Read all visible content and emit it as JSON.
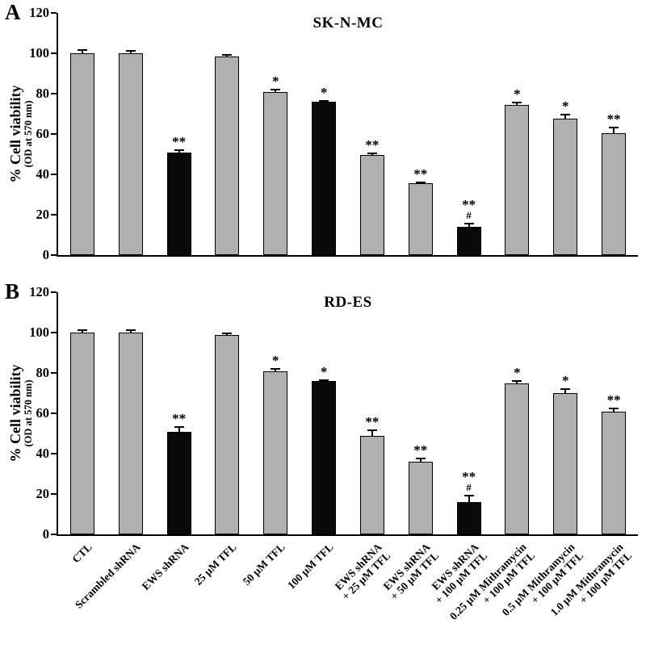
{
  "figure": {
    "panels": [
      {
        "label": "A",
        "title": "SK-N-MC",
        "ylabel": "% Cell viability",
        "ylabel_sub": "(OD at 570 nm)"
      },
      {
        "label": "B",
        "title": "RD-ES",
        "ylabel": "% Cell viability",
        "ylabel_sub": "(OD at 570 nm)"
      }
    ]
  },
  "colors": {
    "bar_gray": "#b0b0b0",
    "bar_black": "#0a0a0a",
    "axis": "#000000"
  },
  "chart_data": [
    {
      "type": "bar",
      "panel": "A",
      "title": "SK-N-MC",
      "ylabel": "% Cell viability (OD at 570 nm)",
      "xlabel": "",
      "ylim": [
        0,
        120
      ],
      "yticks": [
        0,
        20,
        40,
        60,
        80,
        100,
        120
      ],
      "grid": false,
      "legend": false,
      "categories": [
        "CTL",
        "Scrambled shRNA",
        "EWS shRNA",
        "25 µM TFL",
        "50 µM TFL",
        "100 µM TFL",
        "EWS shRNA\n+ 25 µM TFL",
        "EWS shRNA\n+ 50 µM TFL",
        "EWS shRNA\n+ 100 µM TFL",
        "0.25 µM Mithramycin\n+ 100 µM TFL",
        "0.5 µM Mithramycin\n+ 100 µM TFL",
        "1.0 µM Mithramycin\n+ 100 µM TFL"
      ],
      "values": [
        100,
        100,
        51,
        98.5,
        81,
        76,
        49.5,
        35.5,
        14,
        74.5,
        67.5,
        60.5
      ],
      "errors": [
        2,
        1.5,
        1.5,
        1,
        1.5,
        1,
        1.5,
        1,
        2,
        1.5,
        2.5,
        3
      ],
      "significance": [
        [],
        [],
        [
          "**"
        ],
        [],
        [
          "*"
        ],
        [
          "*"
        ],
        [
          "**"
        ],
        [
          "**"
        ],
        [
          "**",
          "#"
        ],
        [
          "*"
        ],
        [
          "*"
        ],
        [
          "**"
        ]
      ],
      "bar_colors": [
        "gray",
        "gray",
        "black",
        "gray",
        "gray",
        "black",
        "gray",
        "gray",
        "black",
        "gray",
        "gray",
        "gray"
      ]
    },
    {
      "type": "bar",
      "panel": "B",
      "title": "RD-ES",
      "ylabel": "% Cell viability (OD at 570 nm)",
      "xlabel": "",
      "ylim": [
        0,
        120
      ],
      "yticks": [
        0,
        20,
        40,
        60,
        80,
        100,
        120
      ],
      "grid": false,
      "legend": false,
      "categories": [
        "CTL",
        "Scrambled shRNA",
        "EWS shRNA",
        "25 µM TFL",
        "50 µM TFL",
        "100 µM TFL",
        "EWS shRNA\n+ 25 µM TFL",
        "EWS shRNA\n+ 50 µM TFL",
        "EWS shRNA\n+ 100 µM TFL",
        "0.25 µM Mithramycin\n+ 100 µM TFL",
        "0.5 µM Mithramycin\n+ 100 µM TFL",
        "1.0 µM Mithramycin\n+ 100 µM TFL"
      ],
      "values": [
        100,
        100,
        51,
        99,
        81,
        76,
        49,
        36,
        16,
        75,
        70,
        61
      ],
      "errors": [
        1.5,
        1.5,
        2.5,
        1,
        1.5,
        1,
        3,
        2,
        3.5,
        1.5,
        2.5,
        2
      ],
      "significance": [
        [],
        [],
        [
          "**"
        ],
        [],
        [
          "*"
        ],
        [
          "*"
        ],
        [
          "**"
        ],
        [
          "**"
        ],
        [
          "**",
          "#"
        ],
        [
          "*"
        ],
        [
          "*"
        ],
        [
          "**"
        ]
      ],
      "bar_colors": [
        "gray",
        "gray",
        "black",
        "gray",
        "gray",
        "black",
        "gray",
        "gray",
        "black",
        "gray",
        "gray",
        "gray"
      ]
    }
  ]
}
